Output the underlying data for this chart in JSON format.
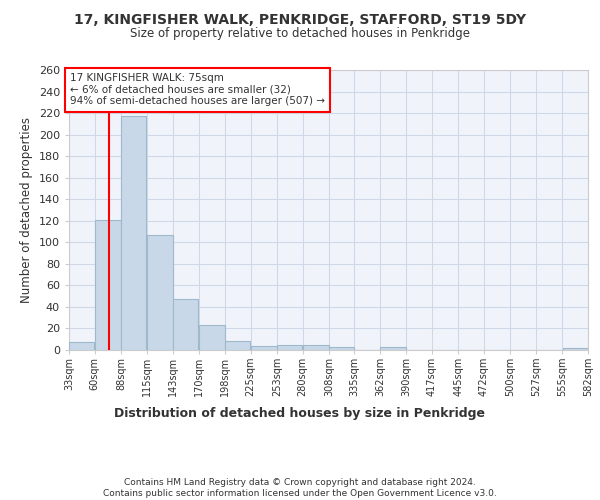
{
  "title": "17, KINGFISHER WALK, PENKRIDGE, STAFFORD, ST19 5DY",
  "subtitle": "Size of property relative to detached houses in Penkridge",
  "xlabel": "Distribution of detached houses by size in Penkridge",
  "ylabel": "Number of detached properties",
  "bar_color": "#c8d8e8",
  "bar_edge_color": "#a0b8cc",
  "grid_color": "#d0d8e8",
  "background_color": "#f0f4fa",
  "red_line_x": 75,
  "annotation_text": "17 KINGFISHER WALK: 75sqm\n← 6% of detached houses are smaller (32)\n94% of semi-detached houses are larger (507) →",
  "footer": "Contains HM Land Registry data © Crown copyright and database right 2024.\nContains public sector information licensed under the Open Government Licence v3.0.",
  "bins": [
    33,
    60,
    88,
    115,
    143,
    170,
    198,
    225,
    253,
    280,
    308,
    335,
    362,
    390,
    417,
    445,
    472,
    500,
    527,
    555,
    582
  ],
  "counts": [
    7,
    121,
    217,
    107,
    47,
    23,
    8,
    4,
    5,
    5,
    3,
    0,
    3,
    0,
    0,
    0,
    0,
    0,
    0,
    2
  ],
  "ylim": [
    0,
    260
  ],
  "yticks": [
    0,
    20,
    40,
    60,
    80,
    100,
    120,
    140,
    160,
    180,
    200,
    220,
    240,
    260
  ]
}
